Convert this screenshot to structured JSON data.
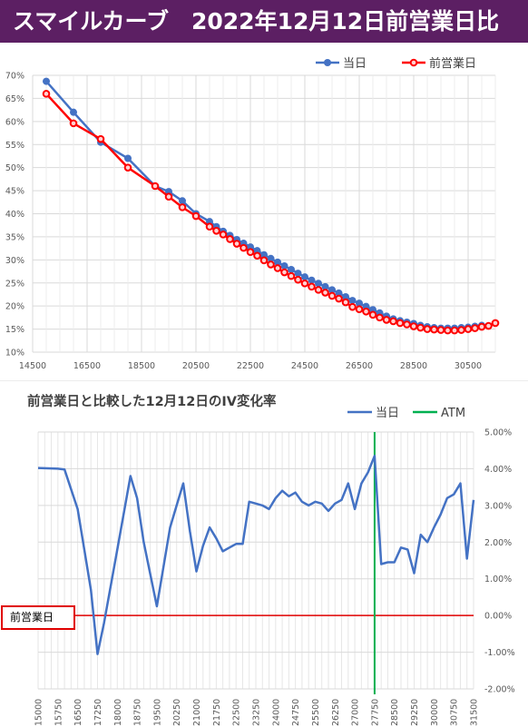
{
  "header": {
    "title": "スマイルカーブ　2022年12月12日前営業日比"
  },
  "colors": {
    "header_bg": "#5c1f63",
    "today": "#4472c4",
    "prev": "#ff0000",
    "atm": "#00b050",
    "zero_line": "#e00000"
  },
  "annotations": {
    "prev_day_label": "前営業日"
  },
  "chart_data": [
    {
      "type": "line",
      "title": "",
      "legend": {
        "position": "top-right",
        "entries": [
          "当日",
          "前営業日"
        ]
      },
      "xlim": [
        14500,
        31500
      ],
      "ylim": [
        10,
        70
      ],
      "x_ticks": [
        "14500",
        "16500",
        "18500",
        "20500",
        "22500",
        "24500",
        "26500",
        "28500",
        "30500"
      ],
      "y_ticks": [
        "10%",
        "15%",
        "20%",
        "25%",
        "30%",
        "35%",
        "40%",
        "45%",
        "50%",
        "55%",
        "60%",
        "65%",
        "70%"
      ],
      "grid": true,
      "series": [
        {
          "name": "当日",
          "color": "#4472c4",
          "x": [
            15000,
            16000,
            17000,
            18000,
            19000,
            19500,
            20000,
            20500,
            21000,
            21250,
            21500,
            21750,
            22000,
            22250,
            22500,
            22750,
            23000,
            23250,
            23500,
            23750,
            24000,
            24250,
            24500,
            24750,
            25000,
            25250,
            25500,
            25750,
            26000,
            26250,
            26500,
            26750,
            27000,
            27250,
            27500,
            27750,
            28000,
            28250,
            28500,
            28750,
            29000,
            29250,
            29500,
            29750,
            30000,
            30250,
            30500,
            30750,
            31000
          ],
          "values": [
            68.7,
            62.0,
            55.5,
            52.0,
            46.0,
            44.8,
            42.8,
            40.0,
            38.3,
            37.2,
            36.2,
            35.3,
            34.4,
            33.6,
            32.8,
            32.0,
            31.1,
            30.3,
            29.5,
            28.7,
            27.9,
            27.1,
            26.3,
            25.6,
            24.9,
            24.2,
            23.5,
            22.8,
            22.0,
            21.2,
            20.6,
            19.9,
            19.2,
            18.5,
            17.8,
            17.2,
            16.8,
            16.5,
            16.2,
            15.8,
            15.5,
            15.3,
            15.2,
            15.2,
            15.2,
            15.3,
            15.4,
            15.6,
            15.8
          ]
        },
        {
          "name": "前営業日",
          "color": "#ff0000",
          "x": [
            15000,
            16000,
            17000,
            18000,
            19000,
            19500,
            20000,
            20500,
            21000,
            21250,
            21500,
            21750,
            22000,
            22250,
            22500,
            22750,
            23000,
            23250,
            23500,
            23750,
            24000,
            24250,
            24500,
            24750,
            25000,
            25250,
            25500,
            25750,
            26000,
            26250,
            26500,
            26750,
            27000,
            27250,
            27500,
            27750,
            28000,
            28250,
            28500,
            28750,
            29000,
            29250,
            29500,
            29750,
            30000,
            30250,
            30500,
            30750,
            31000,
            31250,
            31500
          ],
          "values": [
            66.0,
            59.6,
            56.2,
            50.0,
            46.0,
            43.7,
            41.4,
            39.5,
            37.2,
            36.3,
            35.5,
            34.5,
            33.5,
            32.6,
            31.7,
            30.9,
            29.9,
            29.0,
            28.2,
            27.3,
            26.5,
            25.7,
            24.9,
            24.2,
            23.5,
            22.9,
            22.2,
            21.6,
            20.8,
            19.8,
            19.3,
            18.8,
            18.1,
            17.5,
            17.0,
            16.7,
            16.3,
            16.0,
            15.6,
            15.3,
            15.0,
            14.9,
            14.8,
            14.7,
            14.7,
            14.8,
            15.0,
            15.2,
            15.5,
            15.7,
            16.3
          ]
        }
      ]
    },
    {
      "type": "line",
      "title": "前営業日と比較した12月12日のIV変化率",
      "legend": {
        "position": "top-right",
        "entries": [
          "当日",
          "ATM"
        ]
      },
      "xlim": [
        15000,
        31500
      ],
      "ylim": [
        -2,
        5
      ],
      "x_ticks": [
        "15000",
        "15750",
        "16500",
        "17250",
        "18000",
        "18750",
        "19500",
        "20250",
        "21000",
        "21750",
        "22500",
        "23250",
        "24000",
        "24750",
        "25500",
        "26250",
        "27000",
        "27750",
        "28500",
        "29250",
        "30000",
        "30750",
        "31500"
      ],
      "y_ticks": [
        "-2.00%",
        "-1.00%",
        "0.00%",
        "1.00%",
        "2.00%",
        "3.00%",
        "4.00%",
        "5.00%"
      ],
      "atm_x": 27750,
      "grid": true,
      "series": [
        {
          "name": "当日",
          "color": "#4472c4",
          "x": [
            15000,
            15750,
            16000,
            16500,
            17000,
            17250,
            17500,
            18000,
            18500,
            18750,
            19000,
            19500,
            20000,
            20250,
            20500,
            20750,
            21000,
            21250,
            21500,
            21750,
            22000,
            22250,
            22500,
            22750,
            23000,
            23250,
            23500,
            23750,
            24000,
            24250,
            24500,
            24750,
            25000,
            25250,
            25500,
            25750,
            26000,
            26250,
            26500,
            26750,
            27000,
            27250,
            27500,
            27750,
            28000,
            28250,
            28500,
            28750,
            29000,
            29250,
            29500,
            29750,
            30000,
            30250,
            30500,
            30750,
            31000,
            31250,
            31500
          ],
          "values": [
            4.02,
            4.0,
            3.98,
            2.9,
            0.7,
            -1.05,
            -0.2,
            1.8,
            3.8,
            3.2,
            2.0,
            0.25,
            2.4,
            3.0,
            3.6,
            2.3,
            1.2,
            1.9,
            2.4,
            2.1,
            1.75,
            1.85,
            1.95,
            1.95,
            3.1,
            3.05,
            3.0,
            2.9,
            3.2,
            3.4,
            3.25,
            3.35,
            3.1,
            3.0,
            3.1,
            3.05,
            2.85,
            3.05,
            3.15,
            3.6,
            2.9,
            3.6,
            3.9,
            4.35,
            1.4,
            1.45,
            1.45,
            1.85,
            1.8,
            1.15,
            2.2,
            2.0,
            2.4,
            2.75,
            3.2,
            3.3,
            3.6,
            1.55,
            3.15
          ]
        }
      ]
    }
  ]
}
